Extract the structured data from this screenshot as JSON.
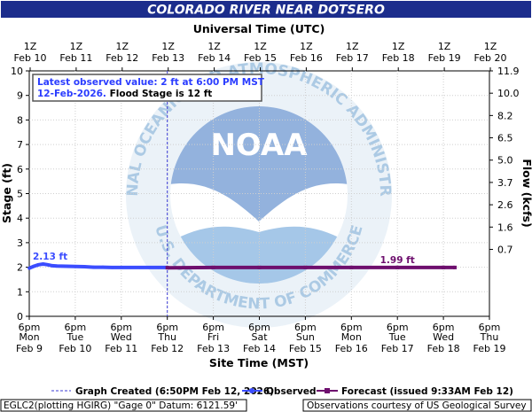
{
  "title": "COLORADO RIVER NEAR DOTSERO",
  "colors": {
    "banner": "#1c2d8c",
    "observed": "#3b4dff",
    "forecast": "#6e0f6e",
    "created": "#3b3bd6",
    "annotation_blue": "#2a3cff",
    "noaa_dark": "#5c9bd6",
    "noaa_light": "#b9d9ef"
  },
  "logo": {
    "center_text": "NOAA",
    "ring_top": "NATIONAL OCEANIC AND ATMOSPHERIC ADMINISTRATION",
    "ring_bottom": "U.S. DEPARTMENT OF COMMERCE"
  },
  "annotation": {
    "line1": "Latest observed value: 2 ft at 6:00 PM MST",
    "line2_blue": "12-Feb-2026.",
    "line2_black": " Flood Stage is 12 ft"
  },
  "chart_data": {
    "type": "line",
    "top_axis_title": "Universal Time (UTC)",
    "xlabel": "Site Time (MST)",
    "ylabel": "Stage (ft)",
    "y2label": "Flow (kcfs)",
    "ylim": [
      0,
      10
    ],
    "xlim_days": [
      0,
      10
    ],
    "yticks": [
      0,
      1,
      2,
      3,
      4,
      5,
      6,
      7,
      8,
      9,
      10
    ],
    "y2ticks": [
      {
        "stage": 3,
        "label": "0.7"
      },
      {
        "stage": 4,
        "label": "1.6"
      },
      {
        "stage": 5,
        "label": "2.6"
      },
      {
        "stage": 6,
        "label": "3.7"
      },
      {
        "stage": 7,
        "label": "5.0"
      },
      {
        "stage": 8,
        "label": "6.5"
      },
      {
        "stage": 9,
        "label": "8.2"
      },
      {
        "stage": 10,
        "label": "10.0"
      },
      {
        "stage": 11,
        "label": "11.9"
      }
    ],
    "bottom_ticks": [
      {
        "t": "6pm",
        "d": "Mon",
        "f": "Feb 9"
      },
      {
        "t": "6pm",
        "d": "Tue",
        "f": "Feb 10"
      },
      {
        "t": "6pm",
        "d": "Wed",
        "f": "Feb 11"
      },
      {
        "t": "6pm",
        "d": "Thu",
        "f": "Feb 12"
      },
      {
        "t": "6pm",
        "d": "Fri",
        "f": "Feb 13"
      },
      {
        "t": "6pm",
        "d": "Sat",
        "f": "Feb 14"
      },
      {
        "t": "6pm",
        "d": "Sun",
        "f": "Feb 15"
      },
      {
        "t": "6pm",
        "d": "Mon",
        "f": "Feb 16"
      },
      {
        "t": "6pm",
        "d": "Tue",
        "f": "Feb 17"
      },
      {
        "t": "6pm",
        "d": "Wed",
        "f": "Feb 18"
      },
      {
        "t": "6pm",
        "d": "Thu",
        "f": "Feb 19"
      }
    ],
    "top_ticks": [
      {
        "t": "1Z",
        "d": "Feb 10"
      },
      {
        "t": "1Z",
        "d": "Feb 11"
      },
      {
        "t": "1Z",
        "d": "Feb 12"
      },
      {
        "t": "1Z",
        "d": "Feb 13"
      },
      {
        "t": "1Z",
        "d": "Feb 14"
      },
      {
        "t": "1Z",
        "d": "Feb 15"
      },
      {
        "t": "1Z",
        "d": "Feb 16"
      },
      {
        "t": "1Z",
        "d": "Feb 17"
      },
      {
        "t": "1Z",
        "d": "Feb 18"
      },
      {
        "t": "1Z",
        "d": "Feb 19"
      },
      {
        "t": "1Z",
        "d": "Feb 20"
      }
    ],
    "graph_created_day": 3.0,
    "observed": {
      "name": "Observed",
      "days": [
        0,
        0.1,
        0.2,
        0.3,
        0.4,
        0.5,
        0.6,
        0.8,
        1.0,
        1.2,
        1.4,
        1.6,
        1.8,
        2.0,
        2.2,
        2.4,
        2.6,
        2.8,
        3.0
      ],
      "values": [
        1.96,
        2.04,
        2.1,
        2.13,
        2.1,
        2.06,
        2.05,
        2.04,
        2.03,
        2.02,
        2.0,
        2.0,
        1.99,
        1.99,
        1.99,
        1.99,
        1.99,
        1.99,
        1.99
      ],
      "peak_label": "2.13 ft"
    },
    "forecast": {
      "name": "Forecast (issued 9:33AM Feb 12)",
      "days": [
        3.0,
        4.0,
        5.0,
        6.0,
        7.0,
        8.0,
        9.0,
        9.25
      ],
      "values": [
        1.98,
        1.99,
        1.99,
        1.99,
        1.99,
        1.99,
        1.99,
        1.99
      ],
      "end_label": "1.99 ft"
    },
    "legend": {
      "created": "Graph Created (6:50PM Feb 12, 2026)",
      "observed": "Observed",
      "forecast": "Forecast (issued 9:33AM Feb 12)"
    }
  },
  "footer": {
    "left": "EGLC2(plotting HGIRG) \"Gage 0\" Datum: 6121.59'",
    "right": "Observations courtesy of US Geological Survey"
  }
}
